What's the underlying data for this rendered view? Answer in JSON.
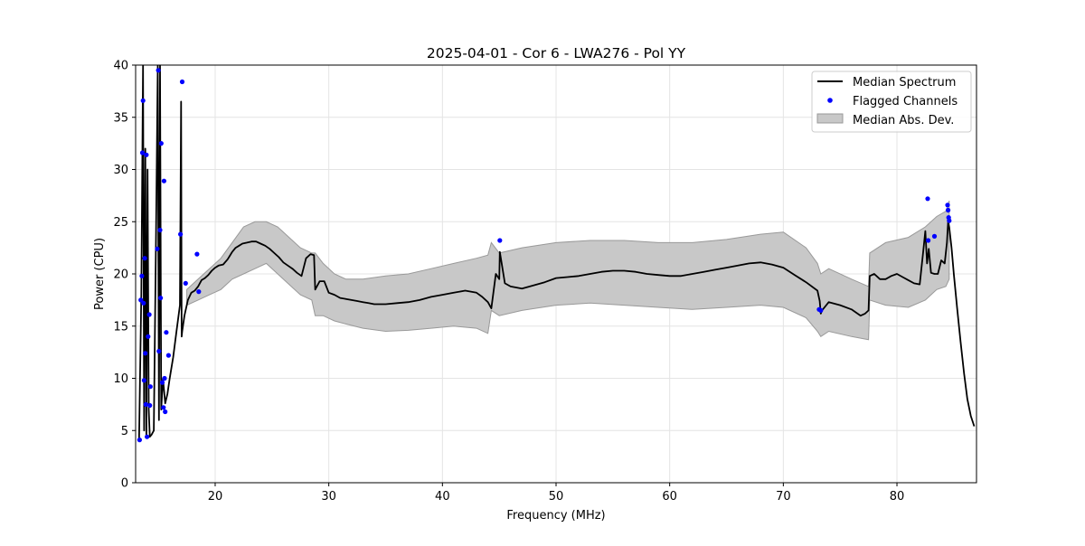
{
  "chart_data": {
    "type": "line",
    "title": "2025-04-01 - Cor 6 - LWA276 - Pol YY",
    "xlabel": "Frequency (MHz)",
    "ylabel": "Power (CPU)",
    "xlim": [
      13,
      87
    ],
    "ylim": [
      0,
      40
    ],
    "xticks": [
      20,
      30,
      40,
      50,
      60,
      70,
      80
    ],
    "yticks": [
      0,
      5,
      10,
      15,
      20,
      25,
      30,
      35,
      40
    ],
    "xtick_labels": [
      "20",
      "30",
      "40",
      "50",
      "60",
      "70",
      "80"
    ],
    "ytick_labels": [
      "0",
      "5",
      "10",
      "15",
      "20",
      "25",
      "30",
      "35",
      "40"
    ],
    "grid": true,
    "legend_position": "top-right",
    "series": [
      {
        "name": "Median Spectrum",
        "kind": "line",
        "color": "#000000",
        "x": [
          13.3,
          13.5,
          13.65,
          13.75,
          13.85,
          13.95,
          14.05,
          14.15,
          14.25,
          14.4,
          14.6,
          14.8,
          14.95,
          15.05,
          15.15,
          15.25,
          15.4,
          15.6,
          15.8,
          16.0,
          16.3,
          16.6,
          16.9,
          17.0,
          17.05,
          17.1,
          17.3,
          17.6,
          17.9,
          18.2,
          18.5,
          18.8,
          19.1,
          19.4,
          19.7,
          20.0,
          20.3,
          20.7,
          21.1,
          21.5,
          21.8,
          22.1,
          22.4,
          22.8,
          23.2,
          23.6,
          24.0,
          24.4,
          24.8,
          25.2,
          25.6,
          26.0,
          26.4,
          26.8,
          27.2,
          27.6,
          28.0,
          28.4,
          28.7,
          28.8,
          29.2,
          29.6,
          30.0,
          30.5,
          31.0,
          31.5,
          32.0,
          32.5,
          33.0,
          33.5,
          34.0,
          35.0,
          36.0,
          37.0,
          38.0,
          39.0,
          40.0,
          41.0,
          42.0,
          43.0,
          43.5,
          44.0,
          44.3,
          44.7,
          45.0,
          45.05,
          45.5,
          46.0,
          47.0,
          48.0,
          49.0,
          50.0,
          51.0,
          52.0,
          53.0,
          54.0,
          55.0,
          56.0,
          57.0,
          58.0,
          59.0,
          60.0,
          61.0,
          62.0,
          63.0,
          64.0,
          65.0,
          66.0,
          67.0,
          68.0,
          69.0,
          70.0,
          71.0,
          72.0,
          73.0,
          73.2,
          73.3,
          73.4,
          74.0,
          75.0,
          76.0,
          76.8,
          77.2,
          77.5,
          77.6,
          78.0,
          78.5,
          79.0,
          79.5,
          80.0,
          80.5,
          81.0,
          81.5,
          82.0,
          82.3,
          82.5,
          82.65,
          82.8,
          83.0,
          83.3,
          83.6,
          83.9,
          84.2,
          84.4,
          84.5,
          84.6,
          84.8,
          85.0,
          85.3,
          85.6,
          85.9,
          86.2,
          86.5,
          86.8
        ],
        "y": [
          4.0,
          18,
          40,
          5,
          32,
          4.5,
          30,
          7,
          4.4,
          4.6,
          5.0,
          24,
          40,
          6,
          40,
          7,
          10,
          7.6,
          8.5,
          10.0,
          12.0,
          14.5,
          17.0,
          36.5,
          14,
          14.5,
          16.0,
          17.5,
          18.2,
          18.4,
          18.8,
          19.4,
          19.6,
          19.9,
          20.3,
          20.6,
          20.8,
          20.9,
          21.4,
          22.1,
          22.5,
          22.7,
          22.9,
          23.0,
          23.1,
          23.1,
          22.9,
          22.7,
          22.4,
          22.0,
          21.6,
          21.1,
          20.8,
          20.5,
          20.1,
          19.8,
          21.5,
          21.9,
          21.8,
          18.5,
          19.3,
          19.3,
          18.2,
          18.0,
          17.7,
          17.6,
          17.5,
          17.4,
          17.3,
          17.2,
          17.1,
          17.1,
          17.2,
          17.3,
          17.5,
          17.8,
          18.0,
          18.2,
          18.4,
          18.2,
          17.8,
          17.3,
          16.7,
          20.0,
          19.5,
          22.1,
          19.1,
          18.8,
          18.6,
          18.9,
          19.2,
          19.6,
          19.7,
          19.8,
          20.0,
          20.2,
          20.3,
          20.3,
          20.2,
          20.0,
          19.9,
          19.8,
          19.8,
          20.0,
          20.2,
          20.4,
          20.6,
          20.8,
          21.0,
          21.1,
          20.9,
          20.6,
          19.9,
          19.2,
          18.4,
          17.4,
          16.2,
          16.5,
          17.3,
          17.0,
          16.6,
          16.0,
          16.2,
          16.5,
          19.8,
          20.0,
          19.5,
          19.5,
          19.8,
          20.0,
          19.7,
          19.4,
          19.1,
          19.0,
          22.0,
          24.1,
          21.0,
          22.4,
          20.1,
          20.0,
          20.0,
          21.3,
          21.0,
          23.0,
          25.0,
          24.5,
          22.5,
          20.0,
          16.7,
          13.5,
          10.5,
          8.0,
          6.4,
          5.4
        ]
      },
      {
        "name": "Flagged Channels",
        "kind": "scatter",
        "color": "#0000ff",
        "x": [
          13.35,
          13.45,
          13.55,
          13.6,
          13.65,
          13.7,
          13.75,
          13.8,
          13.85,
          13.9,
          13.95,
          14.0,
          14.1,
          14.2,
          14.25,
          14.3,
          14.9,
          15.0,
          15.05,
          15.15,
          15.2,
          15.25,
          15.35,
          15.45,
          15.5,
          15.55,
          15.6,
          15.7,
          15.9,
          16.95,
          17.1,
          17.4,
          18.4,
          18.55,
          45.05,
          73.15,
          73.3,
          82.7,
          82.75,
          83.3,
          84.45,
          84.5,
          84.55,
          84.6
        ],
        "y": [
          4.1,
          17.5,
          19.8,
          31.6,
          36.6,
          17.2,
          9.8,
          21.5,
          12.4,
          7.5,
          31.4,
          4.4,
          14.0,
          16.1,
          7.4,
          9.2,
          22.4,
          39.5,
          12.6,
          24.2,
          17.7,
          32.5,
          9.6,
          7.2,
          28.9,
          10.0,
          6.8,
          14.4,
          12.2,
          23.8,
          38.4,
          19.1,
          21.9,
          18.3,
          23.2,
          16.6,
          16.5,
          27.2,
          23.2,
          23.6,
          26.6,
          26.1,
          25.4,
          25.1
        ]
      },
      {
        "name": "Median Abs. Dev.",
        "kind": "band",
        "color": "#c8c8c8",
        "edge_color": "#999999",
        "x": [
          17.5,
          18.5,
          19.5,
          20.5,
          21.5,
          22.5,
          23.5,
          24.5,
          25.5,
          26.5,
          27.5,
          28.5,
          28.8,
          29.5,
          30.5,
          31.5,
          33.0,
          35.0,
          37.0,
          39.0,
          41.0,
          43.0,
          44.0,
          44.3,
          45.0,
          47.0,
          50.0,
          53.0,
          56.0,
          59.0,
          62.0,
          65.0,
          68.0,
          70.0,
          72.0,
          73.0,
          73.3,
          74.0,
          76.0,
          77.5,
          77.6,
          79.0,
          81.0,
          82.5,
          83.5,
          84.3,
          84.6
        ],
        "lower": [
          17.0,
          17.5,
          18.0,
          18.5,
          19.5,
          20.0,
          20.5,
          21.0,
          20.0,
          19.0,
          18.0,
          17.5,
          16.0,
          16.0,
          15.5,
          15.2,
          14.8,
          14.5,
          14.6,
          14.8,
          15.0,
          14.8,
          14.3,
          16.5,
          16.0,
          16.5,
          17.0,
          17.2,
          17.0,
          16.8,
          16.6,
          16.8,
          17.0,
          16.8,
          15.8,
          14.5,
          14.0,
          14.5,
          14.0,
          13.7,
          17.5,
          17.0,
          16.8,
          17.5,
          18.5,
          18.8,
          19.5
        ],
        "upper": [
          18.5,
          19.5,
          20.5,
          21.5,
          23.0,
          24.5,
          25.0,
          25.0,
          24.5,
          23.5,
          22.5,
          22.0,
          22.0,
          21.0,
          20.0,
          19.5,
          19.5,
          19.8,
          20.0,
          20.5,
          21.0,
          21.5,
          21.8,
          23.0,
          22.0,
          22.5,
          23.0,
          23.2,
          23.2,
          23.0,
          23.0,
          23.3,
          23.8,
          24.0,
          22.5,
          21.0,
          20.0,
          20.5,
          19.5,
          18.8,
          22.0,
          23.0,
          23.5,
          24.5,
          25.5,
          26.0,
          27.0
        ]
      }
    ]
  }
}
